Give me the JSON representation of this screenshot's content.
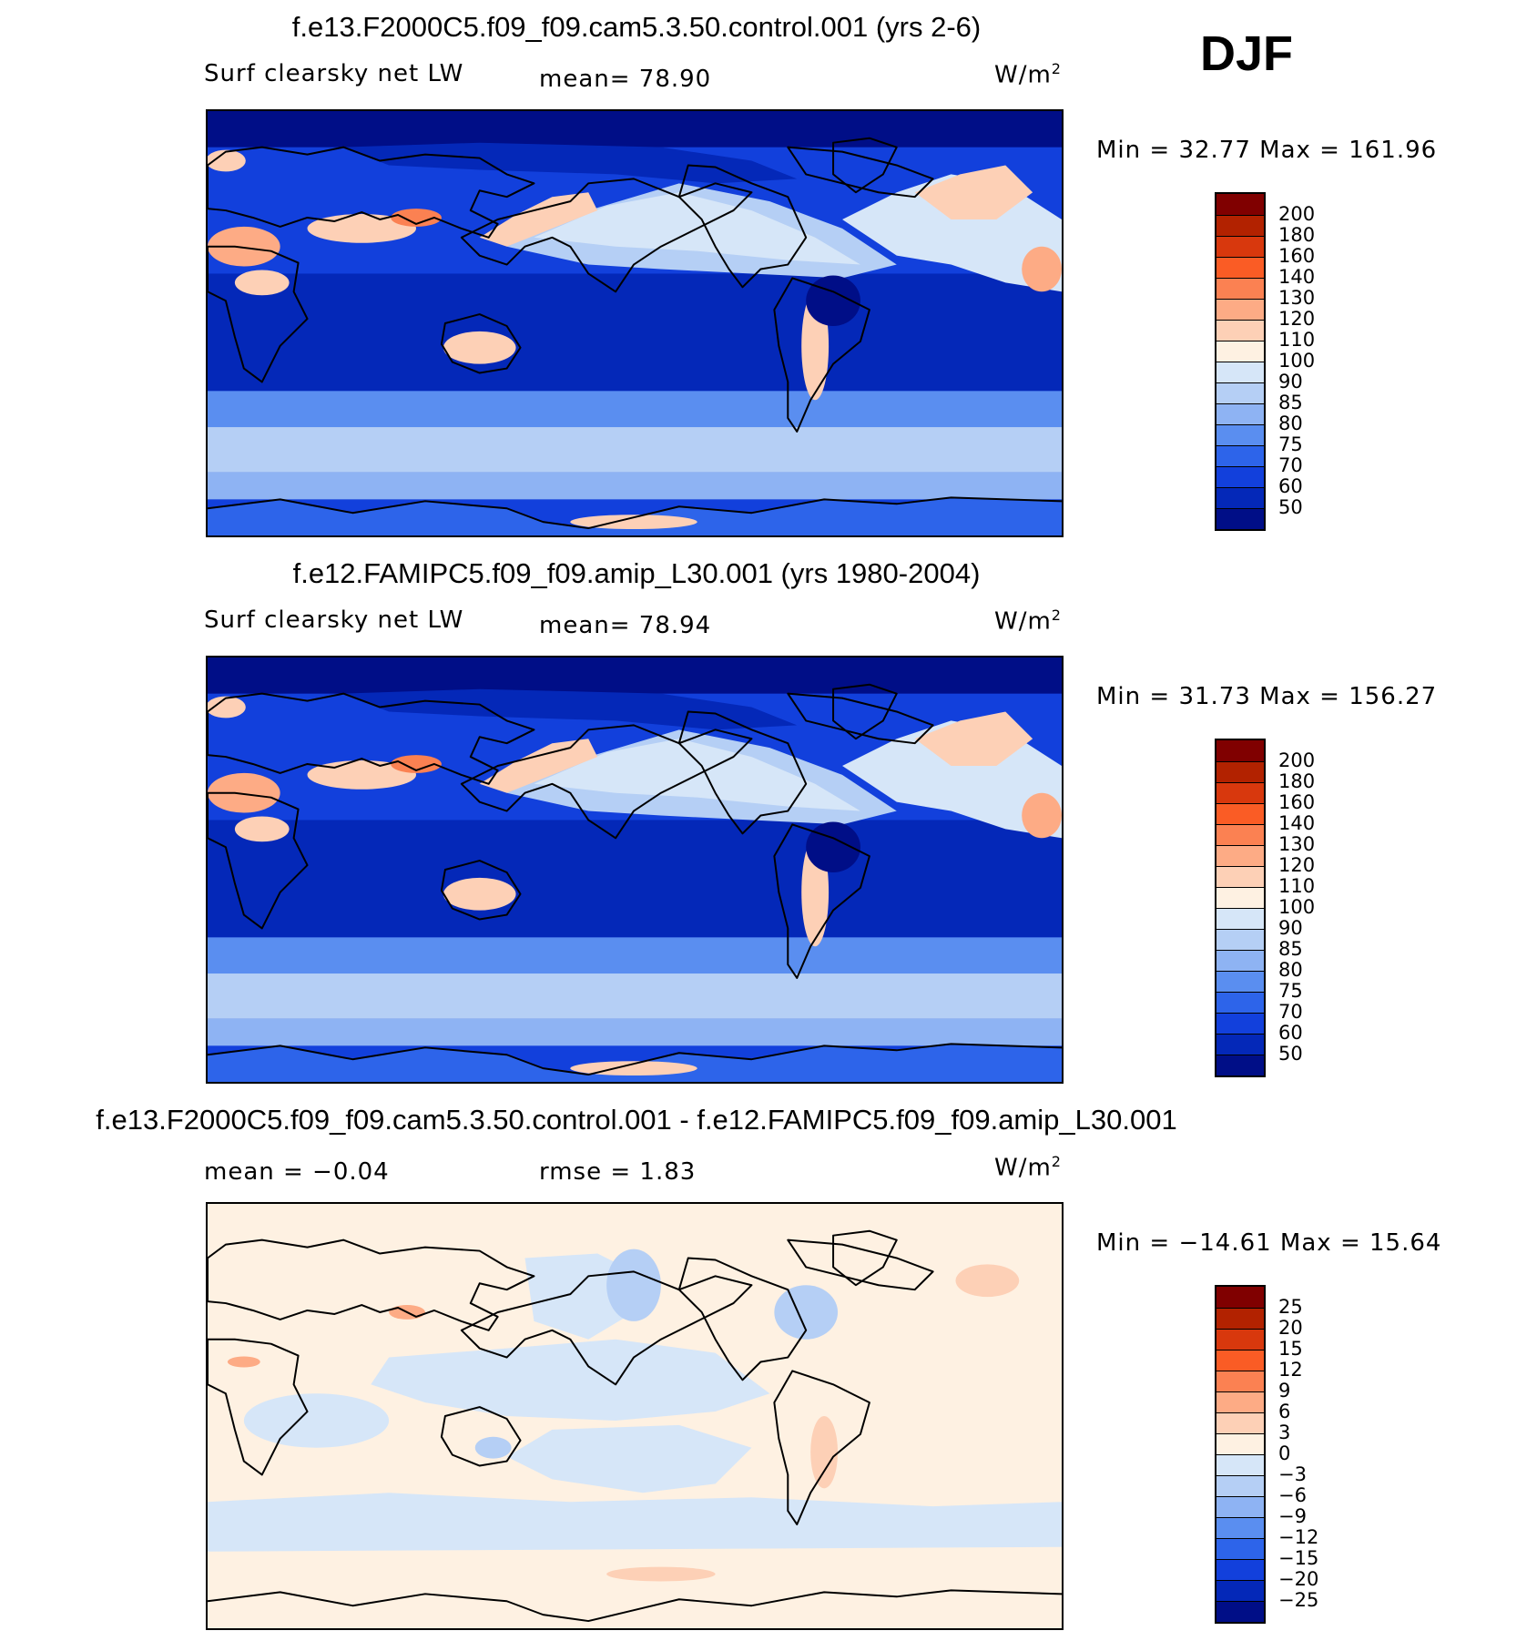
{
  "season": "DJF",
  "panels": [
    {
      "title": "f.e13.F2000C5.f09_f09.cam5.3.50.control.001 (yrs 2-6)",
      "left_label": "Surf clearsky net LW",
      "mid_label": "mean=  78.90",
      "units_base": "W/m",
      "units_exp": "2",
      "minmax": "Min =   32.77 Max  =  161.96",
      "map_style": "model",
      "colorbar": {
        "colors": [
          "#800000",
          "#b22200",
          "#d8380d",
          "#fa5c25",
          "#fb8152",
          "#fdab85",
          "#fdd0b6",
          "#fef1e2",
          "#d6e6f8",
          "#b5cff5",
          "#8eb3f3",
          "#5a8ef0",
          "#2d64ea",
          "#1240dc",
          "#0428b8",
          "#000e87"
        ],
        "labels": [
          "200",
          "180",
          "160",
          "140",
          "130",
          "120",
          "110",
          "100",
          "90",
          "85",
          "80",
          "75",
          "70",
          "60",
          "50"
        ]
      }
    },
    {
      "title": "f.e12.FAMIPC5.f09_f09.amip_L30.001 (yrs 1980-2004)",
      "left_label": "Surf clearsky net LW",
      "mid_label": "mean=  78.94",
      "units_base": "W/m",
      "units_exp": "2",
      "minmax": "Min =   31.73 Max  =  156.27",
      "map_style": "model",
      "colorbar": {
        "colors": [
          "#800000",
          "#b22200",
          "#d8380d",
          "#fa5c25",
          "#fb8152",
          "#fdab85",
          "#fdd0b6",
          "#fef1e2",
          "#d6e6f8",
          "#b5cff5",
          "#8eb3f3",
          "#5a8ef0",
          "#2d64ea",
          "#1240dc",
          "#0428b8",
          "#000e87"
        ],
        "labels": [
          "200",
          "180",
          "160",
          "140",
          "130",
          "120",
          "110",
          "100",
          "90",
          "85",
          "80",
          "75",
          "70",
          "60",
          "50"
        ]
      }
    },
    {
      "title": "f.e13.F2000C5.f09_f09.cam5.3.50.control.001 - f.e12.FAMIPC5.f09_f09.amip_L30.001",
      "left_label": "mean =   −0.04",
      "mid_label": "rmse =     1.83",
      "units_base": "W/m",
      "units_exp": "2",
      "minmax": "Min = −14.61  Max =    15.64",
      "map_style": "diff",
      "colorbar": {
        "colors": [
          "#800000",
          "#b22200",
          "#d8380d",
          "#fa5c25",
          "#fb8152",
          "#fdab85",
          "#fdd0b6",
          "#fef1e2",
          "#d6e6f8",
          "#b5cff5",
          "#8eb3f3",
          "#5a8ef0",
          "#2d64ea",
          "#1240dc",
          "#0428b8",
          "#000e87"
        ],
        "labels": [
          "25",
          "20",
          "15",
          "12",
          "9",
          "6",
          "3",
          "0",
          "−3",
          "−6",
          "−9",
          "−12",
          "−15",
          "−20",
          "−25"
        ]
      }
    }
  ]
}
